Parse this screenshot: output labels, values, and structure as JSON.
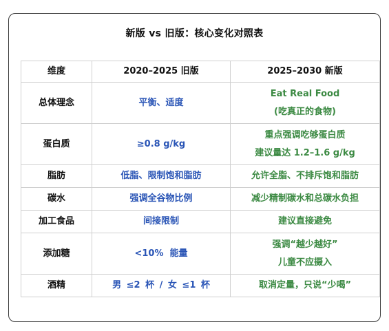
{
  "title": "新版 vs 旧版：核心变化对照表",
  "colors": {
    "old": "#2a55b6",
    "new": "#3c8a43",
    "text": "#111111",
    "border": "#cfcfcf"
  },
  "table": {
    "headers": [
      "维度",
      "2020–2025 旧版",
      "2025–2030 新版"
    ],
    "rows": [
      {
        "dimension": "总体理念",
        "old": [
          "平衡、适度"
        ],
        "new": [
          "Eat Real Food",
          "(吃真正的食物)"
        ]
      },
      {
        "dimension": "蛋白质",
        "old": [
          "≥0.8 g/kg"
        ],
        "new": [
          "重点强调吃够蛋白质",
          "建议量达 1.2–1.6 g/kg"
        ]
      },
      {
        "dimension": "脂肪",
        "old": [
          "低脂、限制饱和脂肪"
        ],
        "new": [
          "允许全脂、不排斥饱和脂肪"
        ]
      },
      {
        "dimension": "碳水",
        "old": [
          "强调全谷物比例"
        ],
        "new": [
          "减少精制碳水和总碳水负担"
        ]
      },
      {
        "dimension": "加工食品",
        "old": [
          "间接限制"
        ],
        "new": [
          "建议直接避免"
        ]
      },
      {
        "dimension": "添加糖",
        "old": [
          "<10%  能量"
        ],
        "new": [
          "强调“越少越好”",
          "儿童不应摄入"
        ]
      },
      {
        "dimension": "酒精",
        "old": [
          "男 ≤2 杯 / 女 ≤1 杯"
        ],
        "new": [
          "取消定量，只说“少喝”"
        ]
      }
    ]
  }
}
